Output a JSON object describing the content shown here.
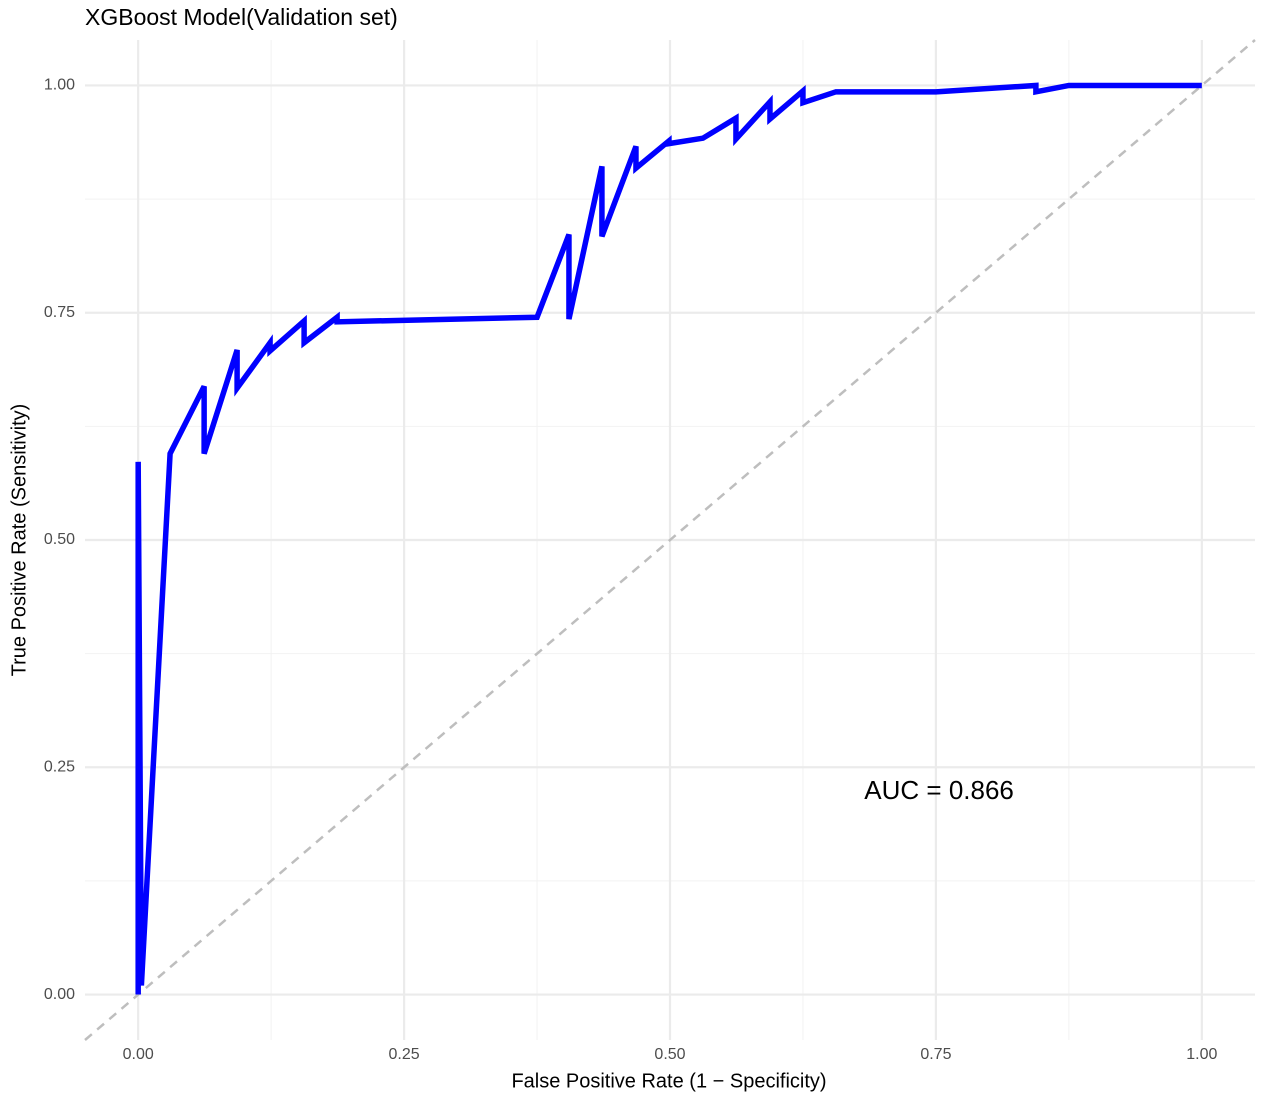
{
  "chart_data": {
    "type": "line",
    "title": "XGBoost Model(Validation set)",
    "x_label": "False Positive Rate (1 − Specificity)",
    "y_label": "True Positive Rate (Sensitivity)",
    "annotation": "AUC = 0.866",
    "xlim": [
      -0.05,
      1.05
    ],
    "ylim": [
      -0.05,
      1.05
    ],
    "xticks": [
      {
        "value": 0,
        "label": "0.00"
      },
      {
        "value": 0.25,
        "label": "0.25"
      },
      {
        "value": 0.5,
        "label": "0.50"
      },
      {
        "value": 0.75,
        "label": "0.75"
      },
      {
        "value": 1,
        "label": "1.00"
      }
    ],
    "yticks": [
      {
        "value": 0,
        "label": "0.00"
      },
      {
        "value": 0.25,
        "label": "0.25"
      },
      {
        "value": 0.5,
        "label": "0.50"
      },
      {
        "value": 0.75,
        "label": "0.75"
      },
      {
        "value": 1,
        "label": "1.00"
      }
    ],
    "grid": true,
    "reference_line_color": "#bebebe",
    "series": [
      {
        "color": "#0000ff",
        "x": [
          0,
          0,
          0.003,
          0.03,
          0.062,
          0.062,
          0.093,
          0.093,
          0.124,
          0.124,
          0.156,
          0.156,
          0.187,
          0.187,
          0.375,
          0.405,
          0.405,
          0.436,
          0.436,
          0.468,
          0.468,
          0.499,
          0.499,
          0.531,
          0.562,
          0.562,
          0.594,
          0.594,
          0.625,
          0.625,
          0.656,
          0.75,
          0.844,
          0.844,
          0.875,
          1
        ],
        "values": [
          0,
          0.586,
          0.01,
          0.595,
          0.669,
          0.595,
          0.709,
          0.667,
          0.717,
          0.708,
          0.741,
          0.717,
          0.745,
          0.74,
          0.745,
          0.836,
          0.743,
          0.911,
          0.834,
          0.933,
          0.909,
          0.939,
          0.936,
          0.942,
          0.964,
          0.941,
          0.982,
          0.963,
          0.994,
          0.981,
          0.993,
          0.993,
          1,
          0.993,
          1,
          1
        ]
      }
    ]
  }
}
